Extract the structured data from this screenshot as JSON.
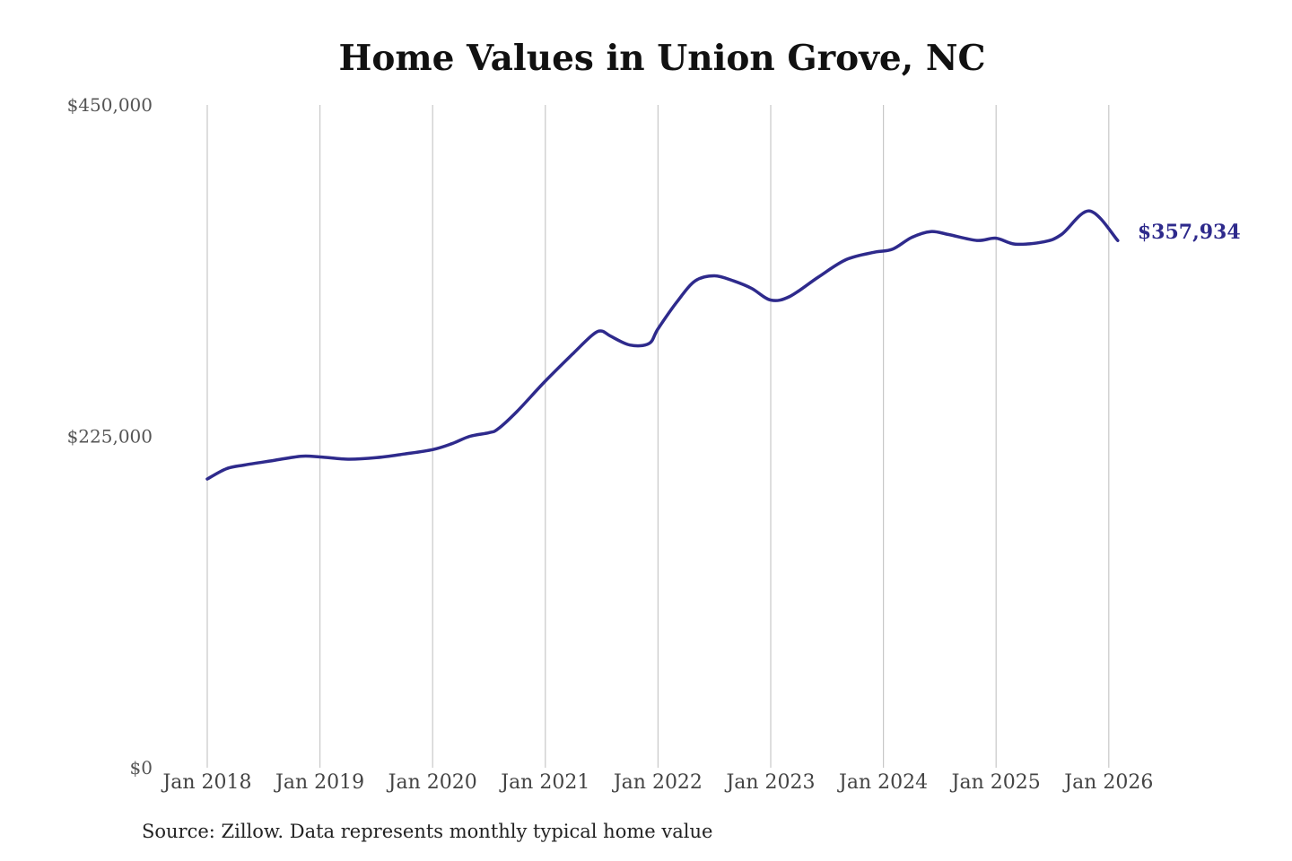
{
  "chart_data": {
    "type": "line",
    "title": "Home Values in Union Grove, NC",
    "ylim": [
      0,
      450000
    ],
    "y_ticks": [
      {
        "value": 0,
        "label": "$0"
      },
      {
        "value": 225000,
        "label": "$225,000"
      },
      {
        "value": 450000,
        "label": "$450,000"
      }
    ],
    "x_ticks": [
      {
        "value": 2018.0,
        "label": "Jan 2018"
      },
      {
        "value": 2019.0,
        "label": "Jan 2019"
      },
      {
        "value": 2020.0,
        "label": "Jan 2020"
      },
      {
        "value": 2021.0,
        "label": "Jan 2021"
      },
      {
        "value": 2022.0,
        "label": "Jan 2022"
      },
      {
        "value": 2023.0,
        "label": "Jan 2023"
      },
      {
        "value": 2024.0,
        "label": "Jan 2024"
      },
      {
        "value": 2025.0,
        "label": "Jan 2025"
      },
      {
        "value": 2026.0,
        "label": "Jan 2026"
      }
    ],
    "xlim": [
      2018.0,
      2026.08
    ],
    "grid": "vertical",
    "line_color": "#2e2a8c",
    "end_label": "$357,934",
    "series": [
      {
        "x": [
          2018.0,
          2018.17,
          2018.33,
          2018.58,
          2018.83,
          2019.0,
          2019.25,
          2019.5,
          2019.75,
          2020.0,
          2020.17,
          2020.33,
          2020.5,
          2020.58,
          2020.75,
          2021.0,
          2021.25,
          2021.42,
          2021.5,
          2021.58,
          2021.75,
          2021.92,
          2022.0,
          2022.17,
          2022.33,
          2022.5,
          2022.67,
          2022.83,
          2023.0,
          2023.17,
          2023.42,
          2023.67,
          2023.92,
          2024.08,
          2024.25,
          2024.42,
          2024.58,
          2024.83,
          2025.0,
          2025.17,
          2025.42,
          2025.58,
          2025.83,
          2026.08
        ],
        "y": [
          196000,
          203000,
          205500,
          208500,
          211500,
          211000,
          209500,
          210500,
          213000,
          216000,
          220000,
          225000,
          227500,
          230000,
          242000,
          262500,
          281500,
          294000,
          296500,
          293000,
          287000,
          288000,
          298000,
          316500,
          330500,
          334000,
          330500,
          325500,
          317500,
          320000,
          333000,
          345000,
          350000,
          352000,
          360000,
          364000,
          362000,
          358000,
          359500,
          355500,
          357000,
          362000,
          378000,
          357934
        ]
      }
    ]
  },
  "source_text": "Source: Zillow. Data represents monthly typical home value"
}
